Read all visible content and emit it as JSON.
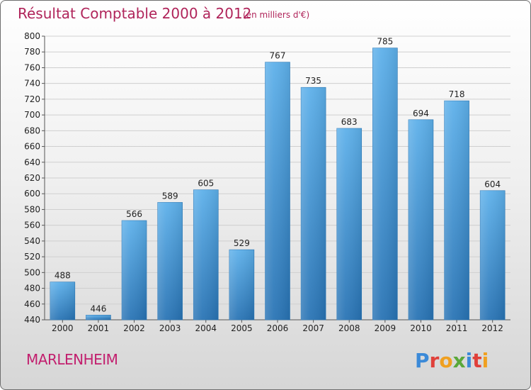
{
  "header": {
    "title": "Résultat Comptable 2000 à 2012",
    "subtitle": "(en milliers d'€)"
  },
  "footer": {
    "commune": "MARLENHEIM",
    "logo_text": "Proxiti"
  },
  "colors": {
    "title": "#b0245a",
    "bar_top": "#5db0ea",
    "bar_bottom": "#2873b4"
  },
  "chart_data": {
    "type": "bar",
    "title": "Résultat Comptable 2000 à 2012",
    "subtitle": "(en milliers d'€)",
    "categories": [
      "2000",
      "2001",
      "2002",
      "2003",
      "2004",
      "2005",
      "2006",
      "2007",
      "2008",
      "2009",
      "2010",
      "2011",
      "2012"
    ],
    "values": [
      488,
      446,
      566,
      589,
      605,
      529,
      767,
      735,
      683,
      785,
      694,
      718,
      604
    ],
    "ylim": [
      440,
      800
    ],
    "yticks": [
      440,
      460,
      480,
      500,
      520,
      540,
      560,
      580,
      600,
      620,
      640,
      660,
      680,
      700,
      720,
      740,
      760,
      780,
      800
    ],
    "grid": true,
    "legend": "none"
  }
}
